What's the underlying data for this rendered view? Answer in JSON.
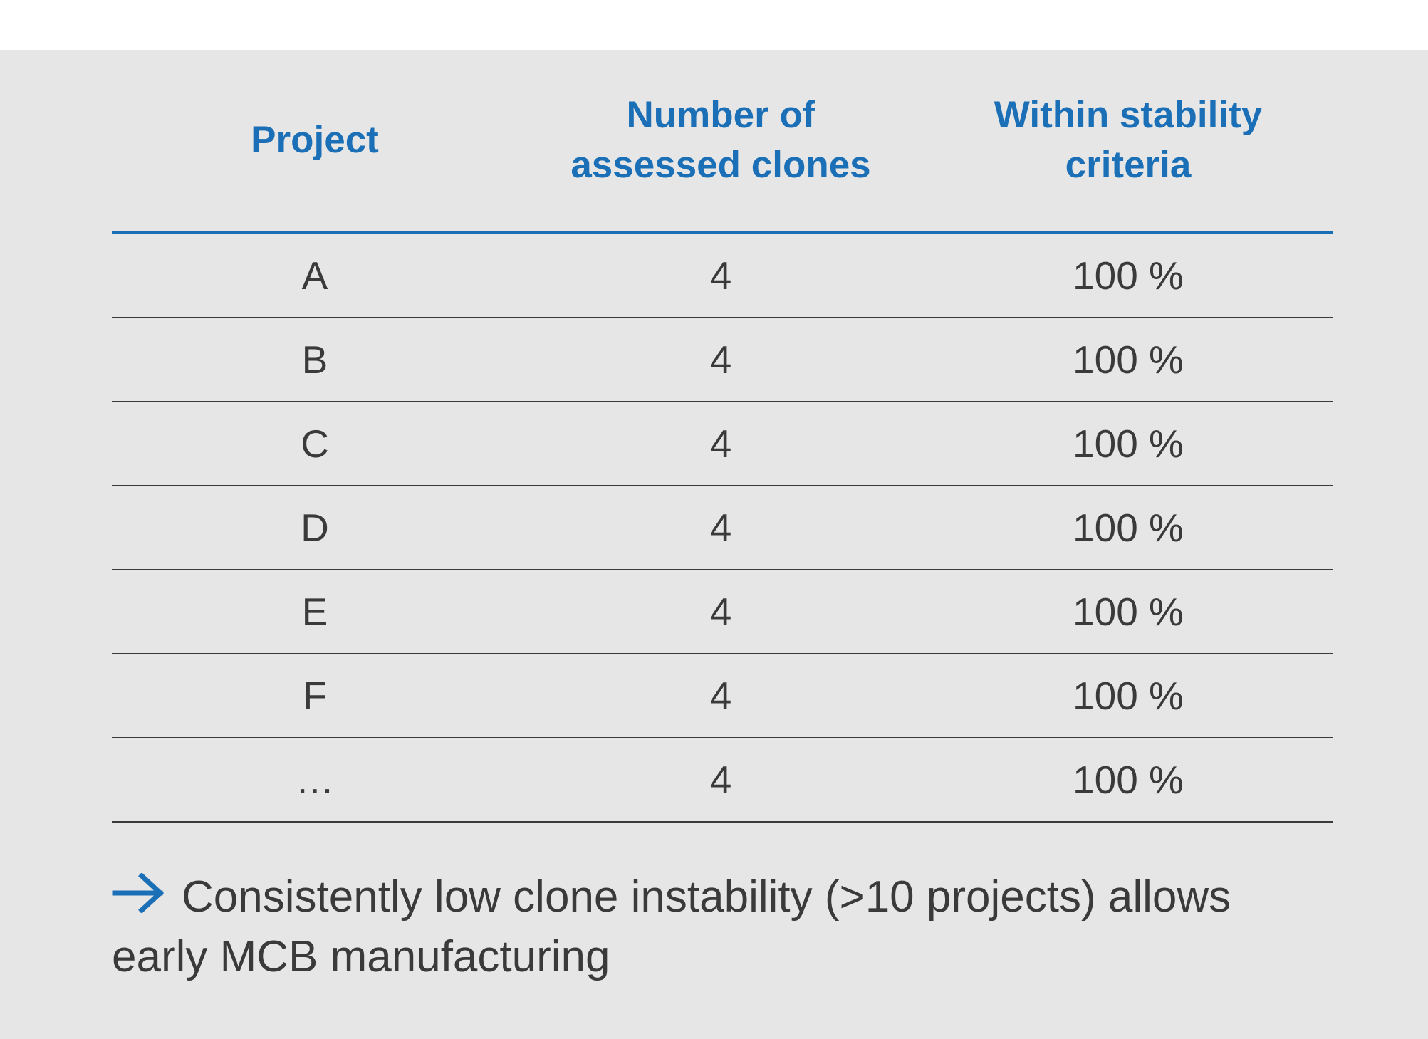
{
  "table": {
    "headers": [
      "Project",
      "Number of assessed clones",
      "Within stability criteria"
    ],
    "rows": [
      [
        "A",
        "4",
        "100 %"
      ],
      [
        "B",
        "4",
        "100 %"
      ],
      [
        "C",
        "4",
        "100 %"
      ],
      [
        "D",
        "4",
        "100 %"
      ],
      [
        "E",
        "4",
        "100 %"
      ],
      [
        "F",
        "4",
        "100 %"
      ],
      [
        "…",
        "4",
        "100 %"
      ]
    ]
  },
  "note": {
    "icon": "arrow-right-icon",
    "text_line1": "Consistently low clone instability (>10 projects) allows",
    "text_line2": "early MCB manufacturing"
  },
  "colors": {
    "accent": "#1a6fb6",
    "text": "#3a3a3a",
    "panel_background": "#e6e6e6"
  }
}
